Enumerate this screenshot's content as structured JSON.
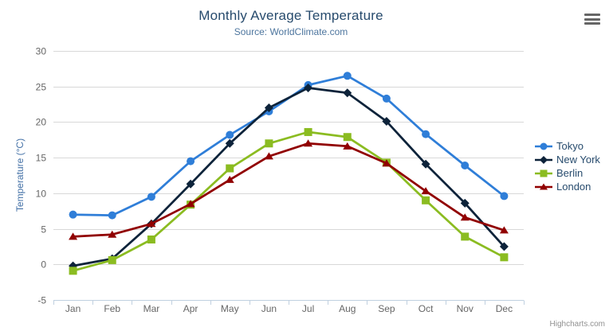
{
  "chart": {
    "credits": "Highcharts.com"
  },
  "chart_data": {
    "type": "line",
    "title": "Monthly Average Temperature",
    "subtitle": "Source: WorldClimate.com",
    "xlabel": "",
    "ylabel": "Temperature (°C)",
    "categories": [
      "Jan",
      "Feb",
      "Mar",
      "Apr",
      "May",
      "Jun",
      "Jul",
      "Aug",
      "Sep",
      "Oct",
      "Nov",
      "Dec"
    ],
    "ylim": [
      -5,
      30
    ],
    "ytick_interval": 5,
    "grid": true,
    "legend_position": "right",
    "colors": {
      "grid_line": "#d8d8d8",
      "axis_line": "#c0d0e0",
      "axis_label": "#666666",
      "title": "#274b6d",
      "subtitle": "#4d759e",
      "yaxis_title": "#4572a7"
    },
    "series": [
      {
        "name": "Tokyo",
        "color": "#2f7ed8",
        "marker": "circle",
        "values": [
          7.0,
          6.9,
          9.5,
          14.5,
          18.2,
          21.5,
          25.2,
          26.5,
          23.3,
          18.3,
          13.9,
          9.6
        ]
      },
      {
        "name": "New York",
        "color": "#0d233a",
        "marker": "diamond",
        "values": [
          -0.2,
          0.8,
          5.7,
          11.3,
          17.0,
          22.0,
          24.8,
          24.1,
          20.1,
          14.1,
          8.6,
          2.5
        ]
      },
      {
        "name": "Berlin",
        "color": "#8bbc21",
        "marker": "square",
        "values": [
          -0.9,
          0.6,
          3.5,
          8.4,
          13.5,
          17.0,
          18.6,
          17.9,
          14.3,
          9.0,
          3.9,
          1.0
        ]
      },
      {
        "name": "London",
        "color": "#910000",
        "marker": "triangle",
        "values": [
          3.9,
          4.2,
          5.7,
          8.5,
          11.9,
          15.2,
          17.0,
          16.6,
          14.2,
          10.3,
          6.6,
          4.8
        ]
      }
    ]
  }
}
